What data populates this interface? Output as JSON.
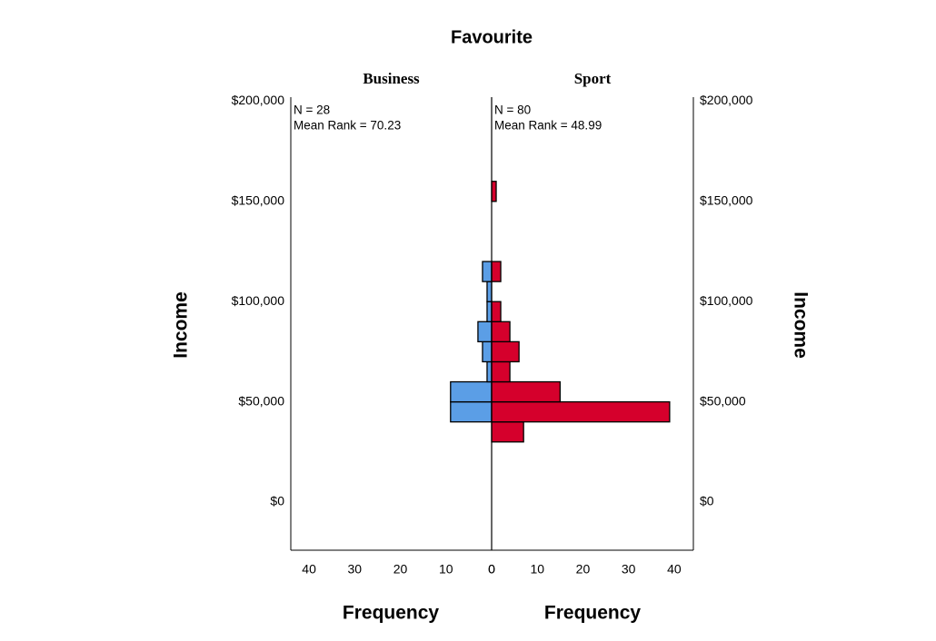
{
  "chart_data": {
    "type": "histogram",
    "title": "Favourite",
    "ylabel": "Income",
    "xlabel": "Frequency",
    "bins": [
      30000,
      40000,
      50000,
      60000,
      70000,
      80000,
      90000,
      100000,
      110000,
      120000,
      130000,
      140000,
      150000,
      160000
    ],
    "series": [
      {
        "name": "Business",
        "color": "#5b9ee6",
        "annotations": [
          "N = 28",
          "Mean Rank = 70.23"
        ],
        "values": [
          0,
          9,
          9,
          1,
          2,
          3,
          1,
          1,
          2,
          0,
          0,
          0,
          0
        ]
      },
      {
        "name": "Sport",
        "color": "#d5002c",
        "annotations": [
          "N = 80",
          "Mean Rank = 48.99"
        ],
        "values": [
          7,
          39,
          15,
          4,
          6,
          4,
          2,
          0,
          2,
          0,
          0,
          0,
          1
        ]
      }
    ],
    "ylim": [
      -24000,
      202000
    ],
    "yticks": [
      {
        "value": 0,
        "label": "$0"
      },
      {
        "value": 50000,
        "label": "$50,000"
      },
      {
        "value": 100000,
        "label": "$100,000"
      },
      {
        "value": 150000,
        "label": "$150,000"
      },
      {
        "value": 200000,
        "label": "$200,000"
      }
    ],
    "xlim": [
      0,
      44
    ],
    "xticks": [
      0,
      10,
      20,
      30,
      40
    ],
    "grid": false
  }
}
